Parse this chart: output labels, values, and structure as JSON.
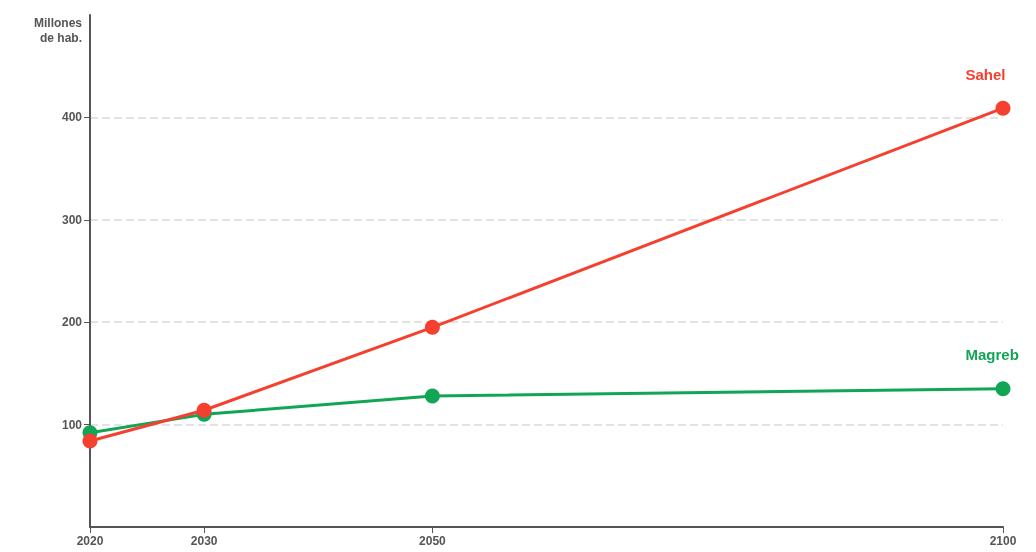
{
  "chart_data": {
    "type": "line",
    "ylabel": "Millones\nde hab.",
    "x": [
      2020,
      2030,
      2050,
      2100
    ],
    "xlim": [
      2020,
      2100
    ],
    "xticks": [
      2020,
      2030,
      2050,
      2100
    ],
    "ylim": [
      0,
      500
    ],
    "yticks": [
      100,
      200,
      300,
      400
    ],
    "grid": "y",
    "marker": "circle",
    "line_style": "solid",
    "legend": false,
    "series": [
      {
        "name": "Sahel",
        "color": "#f5402f",
        "values": [
          84,
          114,
          195,
          409
        ]
      },
      {
        "name": "Magreb",
        "color": "#13a556",
        "values": [
          92,
          110,
          128,
          135
        ]
      }
    ]
  }
}
